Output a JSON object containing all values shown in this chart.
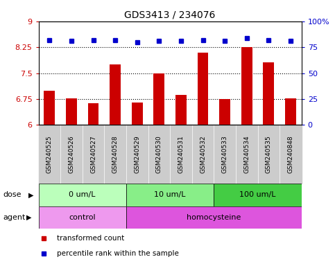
{
  "title": "GDS3413 / 234076",
  "samples": [
    "GSM240525",
    "GSM240526",
    "GSM240527",
    "GSM240528",
    "GSM240529",
    "GSM240530",
    "GSM240531",
    "GSM240532",
    "GSM240533",
    "GSM240534",
    "GSM240535",
    "GSM240848"
  ],
  "transformed_count": [
    7.0,
    6.78,
    6.63,
    7.75,
    6.65,
    7.5,
    6.88,
    8.1,
    6.75,
    8.25,
    7.82,
    6.78
  ],
  "percentile_rank": [
    82,
    81,
    82,
    82,
    80,
    81,
    81,
    82,
    81,
    84,
    82,
    81
  ],
  "ylim_left": [
    6,
    9
  ],
  "ylim_right": [
    0,
    100
  ],
  "yticks_left": [
    6,
    6.75,
    7.5,
    8.25,
    9
  ],
  "yticks_right": [
    0,
    25,
    50,
    75,
    100
  ],
  "ytick_labels_right": [
    "0",
    "25",
    "50",
    "75",
    "100%"
  ],
  "hlines": [
    6.75,
    7.5,
    8.25
  ],
  "bar_color": "#cc0000",
  "dot_color": "#0000cc",
  "dose_groups": [
    {
      "label": "0 um/L",
      "start": 0,
      "end": 4,
      "color": "#bbffbb"
    },
    {
      "label": "10 um/L",
      "start": 4,
      "end": 8,
      "color": "#88ee88"
    },
    {
      "label": "100 um/L",
      "start": 8,
      "end": 12,
      "color": "#44cc44"
    }
  ],
  "agent_groups": [
    {
      "label": "control",
      "start": 0,
      "end": 4,
      "color": "#ee99ee"
    },
    {
      "label": "homocysteine",
      "start": 4,
      "end": 12,
      "color": "#dd55dd"
    }
  ],
  "dose_label": "dose",
  "agent_label": "agent",
  "legend_items": [
    {
      "color": "#cc0000",
      "label": "transformed count"
    },
    {
      "color": "#0000cc",
      "label": "percentile rank within the sample"
    }
  ],
  "sample_box_color": "#cccccc",
  "bg_color": "#ffffff"
}
